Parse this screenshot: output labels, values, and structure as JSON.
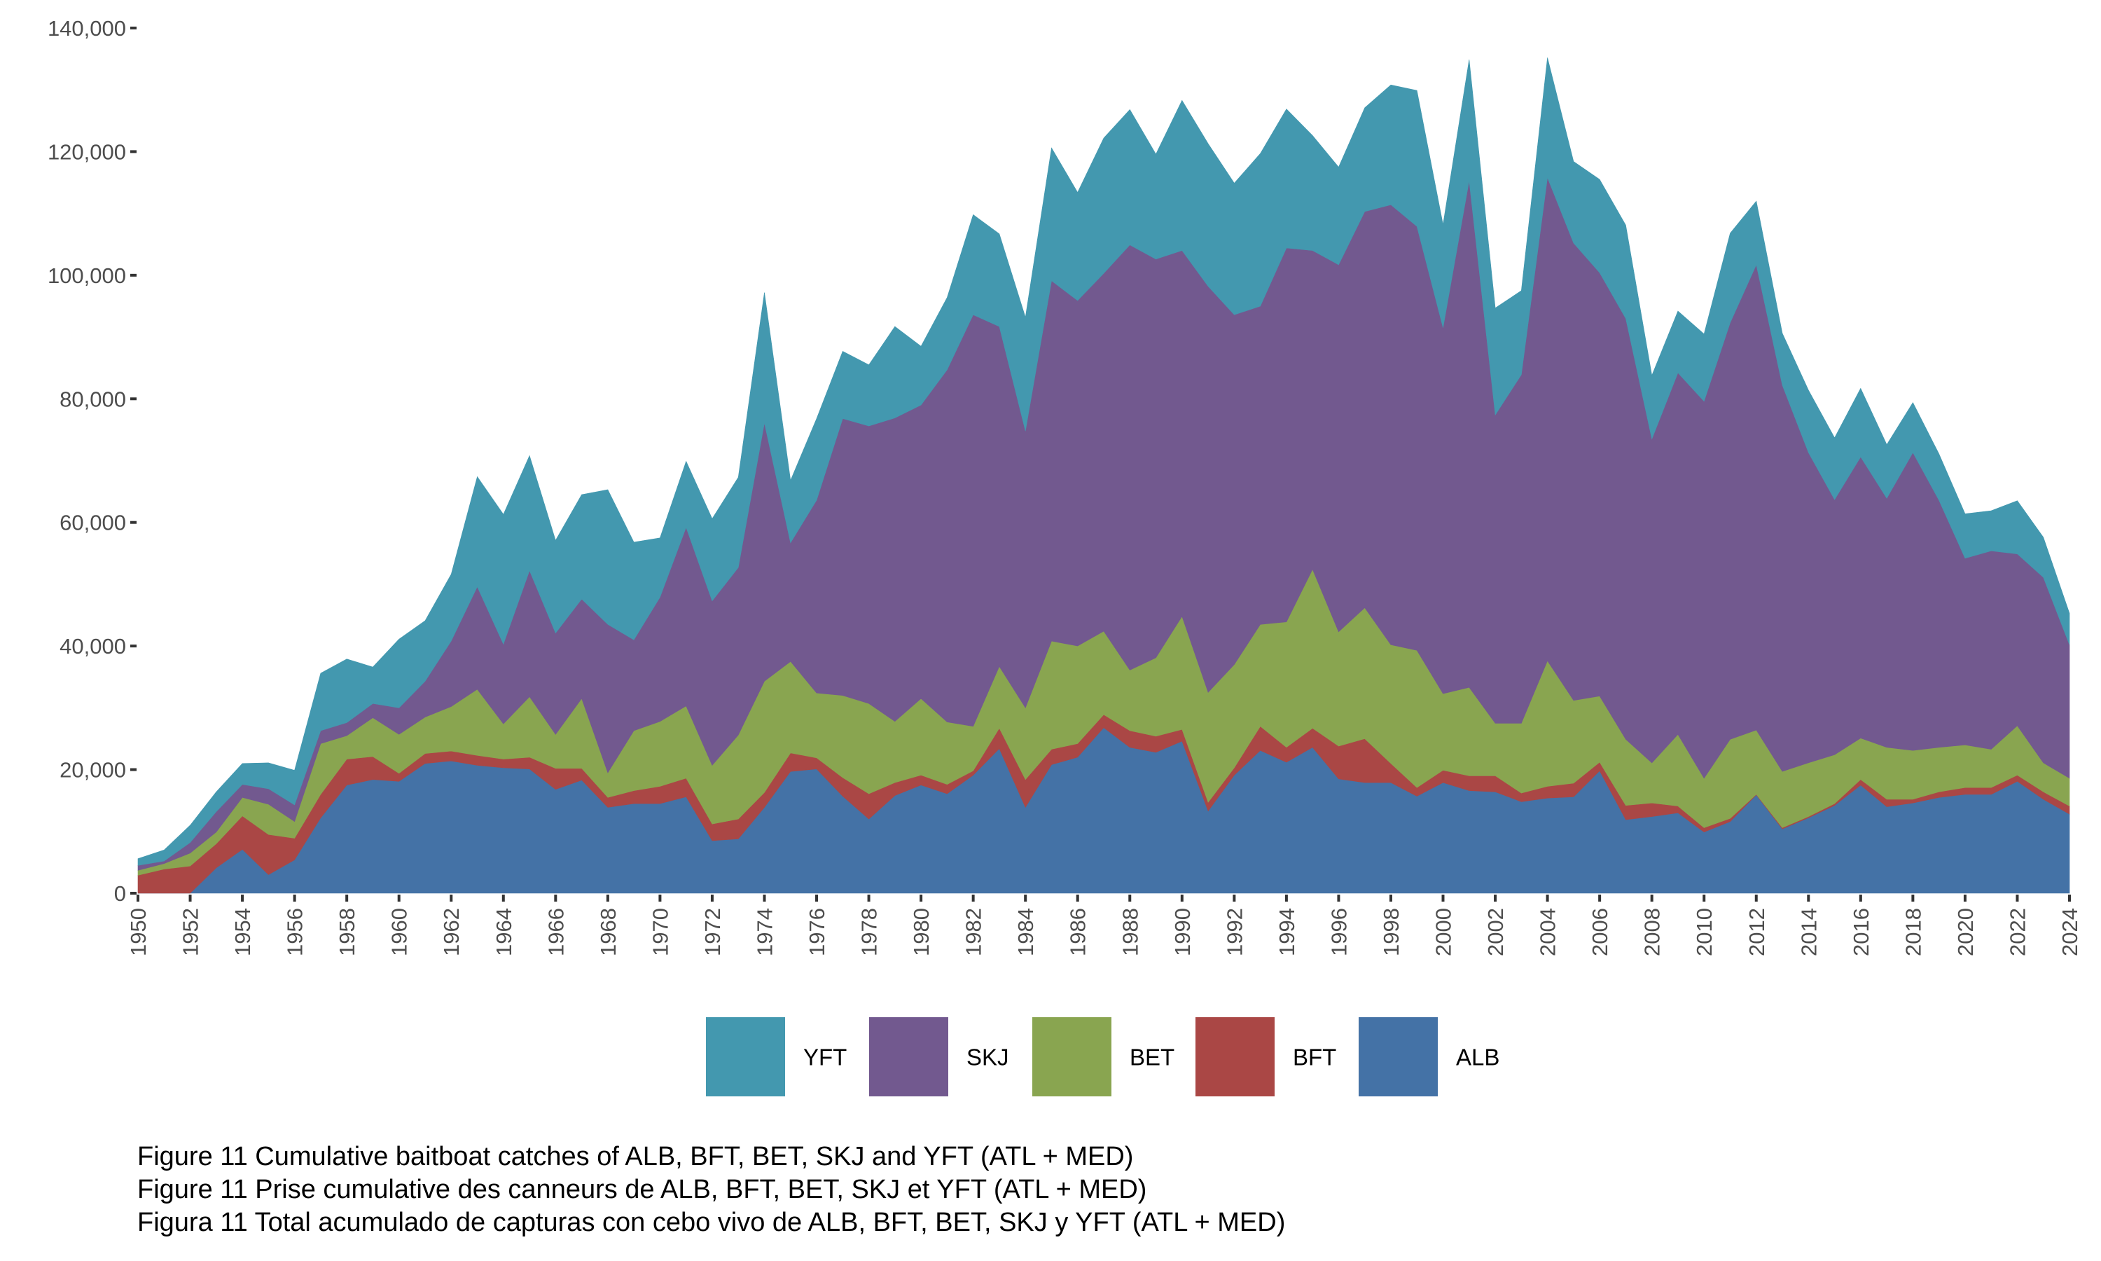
{
  "chart_data": {
    "type": "area",
    "stacked": true,
    "title": "",
    "xlabel": "",
    "ylabel": "",
    "x": [
      1950,
      1951,
      1952,
      1953,
      1954,
      1955,
      1956,
      1957,
      1958,
      1959,
      1960,
      1961,
      1962,
      1963,
      1964,
      1965,
      1966,
      1967,
      1968,
      1969,
      1970,
      1971,
      1972,
      1973,
      1974,
      1975,
      1976,
      1977,
      1978,
      1979,
      1980,
      1981,
      1982,
      1983,
      1984,
      1985,
      1986,
      1987,
      1988,
      1989,
      1990,
      1991,
      1992,
      1993,
      1994,
      1995,
      1996,
      1997,
      1998,
      1999,
      2000,
      2001,
      2002,
      2003,
      2004,
      2005,
      2006,
      2007,
      2008,
      2009,
      2010,
      2011,
      2012,
      2013,
      2014,
      2015,
      2016,
      2017,
      2018,
      2019,
      2020,
      2021,
      2022,
      2023,
      2024
    ],
    "xlim": [
      1950,
      2024
    ],
    "x_ticks": [
      1950,
      1952,
      1954,
      1956,
      1958,
      1960,
      1962,
      1964,
      1966,
      1968,
      1970,
      1972,
      1974,
      1976,
      1978,
      1980,
      1982,
      1984,
      1986,
      1988,
      1990,
      1992,
      1994,
      1996,
      1998,
      2000,
      2002,
      2004,
      2006,
      2008,
      2010,
      2012,
      2014,
      2016,
      2018,
      2020,
      2022,
      2024
    ],
    "ylim": [
      0,
      140000
    ],
    "y_ticks": [
      0,
      20000,
      40000,
      60000,
      80000,
      100000,
      120000,
      140000
    ],
    "y_tick_labels": [
      "0",
      "20,000",
      "40,000",
      "60,000",
      "80,000",
      "100,000",
      "120,000",
      "140,000"
    ],
    "grid": false,
    "legend_position": "bottom",
    "stack_order_bottom_to_top": [
      "ALB",
      "BFT",
      "BET",
      "SKJ",
      "YFT"
    ],
    "series": [
      {
        "name": "ALB",
        "color": "#4472A6",
        "values": [
          0,
          0,
          0,
          4100,
          7100,
          3000,
          5400,
          12200,
          17500,
          18400,
          18100,
          21000,
          21400,
          20700,
          20300,
          20100,
          16800,
          18300,
          13900,
          14500,
          14500,
          15600,
          8500,
          8800,
          13900,
          19700,
          20100,
          15700,
          12000,
          15800,
          17500,
          16100,
          19100,
          23400,
          13900,
          20800,
          22000,
          26800,
          23600,
          22800,
          24600,
          13300,
          19100,
          23100,
          21200,
          23600,
          18500,
          17900,
          17900,
          15700,
          17900,
          16600,
          16400,
          14800,
          15400,
          15600,
          19800,
          11900,
          12400,
          13000,
          9900,
          11600,
          15900,
          10400,
          12200,
          14200,
          17500,
          14000,
          14600,
          15500,
          16000,
          16000,
          18100,
          15200,
          12800
        ]
      },
      {
        "name": "BFT",
        "color": "#AA4745",
        "values": [
          2900,
          3900,
          4400,
          3900,
          5400,
          6500,
          3500,
          3800,
          4200,
          3700,
          1300,
          1600,
          1600,
          1600,
          1400,
          1900,
          3400,
          1900,
          1600,
          2100,
          2800,
          3000,
          2700,
          3200,
          2400,
          3000,
          1800,
          3000,
          4100,
          2100,
          1600,
          1500,
          700,
          3300,
          4500,
          2500,
          2200,
          2100,
          2700,
          2600,
          1900,
          1400,
          1200,
          3900,
          2400,
          3100,
          5300,
          7100,
          3100,
          1400,
          2000,
          2400,
          2600,
          1400,
          1900,
          2200,
          1400,
          2300,
          2200,
          1100,
          700,
          500,
          100,
          200,
          200,
          300,
          900,
          1200,
          600,
          900,
          1100,
          1100,
          1000,
          1200,
          1300
        ]
      },
      {
        "name": "BET",
        "color": "#89A550",
        "values": [
          800,
          900,
          2100,
          1900,
          3000,
          4900,
          2700,
          8200,
          3800,
          6300,
          6300,
          5900,
          7200,
          10700,
          5700,
          9800,
          5500,
          11300,
          4000,
          9700,
          10500,
          11700,
          9500,
          13600,
          18000,
          14800,
          10500,
          13300,
          14600,
          9900,
          12400,
          10100,
          7200,
          10000,
          11600,
          17500,
          15800,
          13500,
          9800,
          12700,
          18300,
          17800,
          16700,
          16500,
          20300,
          25700,
          18500,
          21200,
          19200,
          22200,
          12400,
          14300,
          8500,
          11300,
          20300,
          13400,
          10700,
          10700,
          6500,
          11600,
          8000,
          12800,
          10400,
          9100,
          8700,
          7900,
          6700,
          8400,
          7900,
          7200,
          6900,
          6200,
          8000,
          4700,
          4500
        ]
      },
      {
        "name": "SKJ",
        "color": "#72598F",
        "values": [
          800,
          400,
          1700,
          3300,
          2100,
          2500,
          2700,
          2100,
          2100,
          2300,
          4300,
          5800,
          10600,
          16600,
          12900,
          20400,
          16400,
          16100,
          24000,
          14700,
          20100,
          28900,
          26600,
          27100,
          41800,
          19200,
          31200,
          44800,
          44900,
          49100,
          47500,
          57000,
          66600,
          55000,
          44800,
          58300,
          55900,
          57900,
          68800,
          64500,
          59200,
          65700,
          56600,
          51500,
          60500,
          51600,
          59400,
          64100,
          71200,
          68600,
          59200,
          82000,
          49900,
          56400,
          78200,
          74000,
          68500,
          68100,
          52400,
          58500,
          61000,
          67400,
          75300,
          62500,
          50200,
          41300,
          45500,
          40300,
          48200,
          40000,
          30200,
          32100,
          27800,
          30000,
          21600
        ]
      },
      {
        "name": "YFT",
        "color": "#4398AF",
        "values": [
          1100,
          1800,
          2800,
          3200,
          3400,
          4200,
          5600,
          9300,
          10300,
          5900,
          11100,
          9800,
          10800,
          17800,
          21000,
          18600,
          15000,
          16900,
          21800,
          15800,
          9600,
          10700,
          13300,
          14600,
          21100,
          10100,
          13200,
          10900,
          9900,
          14800,
          9500,
          11700,
          16200,
          15000,
          18400,
          21500,
          17500,
          21900,
          21900,
          17000,
          24300,
          23100,
          21300,
          24700,
          22500,
          18600,
          15800,
          16800,
          19400,
          22000,
          16700,
          19600,
          17300,
          13600,
          19400,
          13200,
          15100,
          15100,
          10300,
          10000,
          10900,
          14500,
          10300,
          8400,
          10100,
          10000,
          11100,
          8700,
          8100,
          7500,
          7200,
          6500,
          8600,
          6500,
          5100
        ]
      }
    ],
    "legend": [
      {
        "label": "YFT",
        "color": "#4398AF"
      },
      {
        "label": "SKJ",
        "color": "#72598F"
      },
      {
        "label": "BET",
        "color": "#89A550"
      },
      {
        "label": "BFT",
        "color": "#AA4745"
      },
      {
        "label": "ALB",
        "color": "#4472A6"
      }
    ]
  },
  "caption": {
    "lines": [
      "Figure 11 Cumulative baitboat catches of ALB, BFT, BET, SKJ and YFT (ATL + MED)",
      "Figure 11 Prise cumulative des canneurs de ALB, BFT, BET, SKJ et YFT (ATL + MED)",
      "Figura 11 Total acumulado de capturas con cebo vivo de ALB, BFT, BET, SKJ y YFT (ATL + MED)"
    ]
  },
  "colors": {
    "axis_text": "#4d4d4d",
    "tick": "#333333",
    "background": "#ffffff"
  }
}
